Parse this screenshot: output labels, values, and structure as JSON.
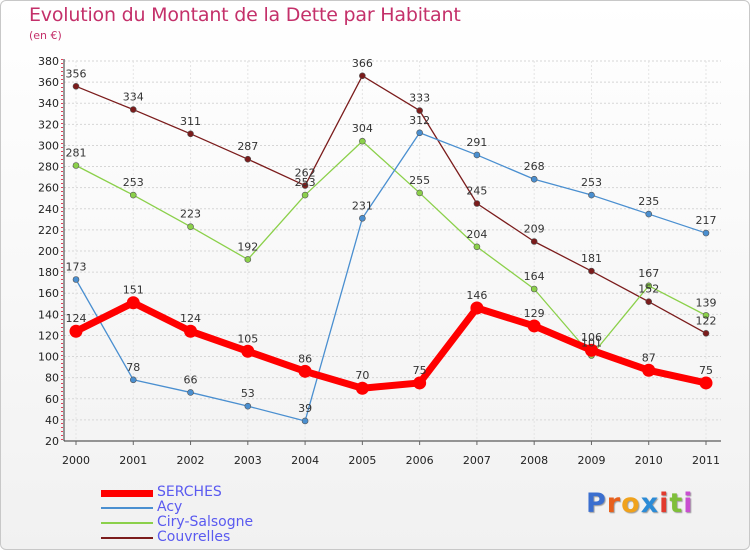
{
  "chart_data": {
    "type": "line",
    "title": "Evolution du Montant de la Dette par Habitant",
    "subtitle": "(en €)",
    "categories": [
      "2000",
      "2001",
      "2002",
      "2003",
      "2004",
      "2005",
      "2006",
      "2007",
      "2008",
      "2009",
      "2010",
      "2011"
    ],
    "y_ticks": [
      20,
      40,
      60,
      80,
      100,
      120,
      140,
      160,
      180,
      200,
      220,
      240,
      260,
      280,
      300,
      320,
      340,
      360,
      380
    ],
    "ylim": [
      20,
      380
    ],
    "grid": "horizontal dashed",
    "legend_position": "bottom-left",
    "series": [
      {
        "name": "Couvrelles",
        "color": "#7b1c1c",
        "values": [
          356,
          334,
          311,
          287,
          262,
          366,
          333,
          245,
          209,
          181,
          152,
          122
        ]
      },
      {
        "name": "Ciry-Salsogne",
        "color": "#8bd04a",
        "values": [
          281,
          253,
          223,
          192,
          253,
          304,
          255,
          204,
          164,
          101,
          167,
          139
        ]
      },
      {
        "name": "Acy",
        "color": "#4a8fd0",
        "values": [
          173,
          78,
          66,
          53,
          39,
          231,
          312,
          291,
          268,
          253,
          235,
          217
        ]
      },
      {
        "name": "SERCHES",
        "color": "#ff0000",
        "values": [
          124,
          151,
          124,
          105,
          86,
          70,
          75,
          146,
          129,
          106,
          87,
          75
        ]
      }
    ]
  },
  "legend": [
    {
      "label": "SERCHES",
      "color": "#ff0000"
    },
    {
      "label": "Acy",
      "color": "#4a8fd0"
    },
    {
      "label": "Ciry-Salsogne",
      "color": "#8bd04a"
    },
    {
      "label": "Couvrelles",
      "color": "#7b1c1c"
    }
  ],
  "brand": {
    "letters": [
      "P",
      "r",
      "o",
      "x",
      "i",
      "t",
      "i"
    ],
    "colors": [
      "#3b6fcf",
      "#e8601c",
      "#f0a21c",
      "#2c8bd6",
      "#e23b2e",
      "#7fbf3a",
      "#c94fd0"
    ]
  }
}
